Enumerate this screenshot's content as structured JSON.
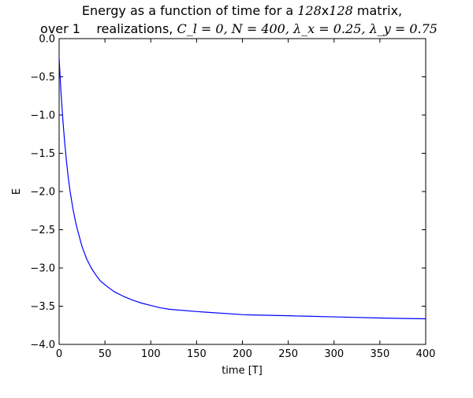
{
  "chart_data": {
    "type": "line",
    "title_line1_pre": "Energy as a function of time for a ",
    "title_line1_math1": "128",
    "title_line1_mid": "x",
    "title_line1_math2": "128",
    "title_line1_post": " matrix,",
    "title_line2_pre": "over 1    realizations, ",
    "title_line2_math": "C_l = 0, N = 400, λ_x = 0.25, λ_y = 0.75",
    "xlabel": "time [T]",
    "ylabel": "E",
    "xlim": [
      0,
      400
    ],
    "ylim": [
      -4.0,
      0.0
    ],
    "xticks": [
      0,
      50,
      100,
      150,
      200,
      250,
      300,
      350,
      400
    ],
    "yticks": [
      0.0,
      -0.5,
      -1.0,
      -1.5,
      -2.0,
      -2.5,
      -3.0,
      -3.5,
      -4.0
    ],
    "xtick_labels": [
      "0",
      "50",
      "100",
      "150",
      "200",
      "250",
      "300",
      "350",
      "400"
    ],
    "ytick_labels": [
      "0.0",
      "−0.5",
      "−1.0",
      "−1.5",
      "−2.0",
      "−2.5",
      "−3.0",
      "−3.5",
      "−4.0"
    ],
    "grid": false,
    "series": [
      {
        "color": "#0000ff",
        "x": [
          0,
          2,
          4,
          6,
          8,
          10,
          12,
          15,
          18,
          20,
          25,
          30,
          35,
          40,
          45,
          50,
          60,
          70,
          80,
          90,
          100,
          110,
          120,
          150,
          200,
          210,
          250,
          300,
          350,
          400
        ],
        "y": [
          -0.25,
          -0.7,
          -1.05,
          -1.35,
          -1.6,
          -1.82,
          -2.0,
          -2.22,
          -2.4,
          -2.5,
          -2.72,
          -2.88,
          -3.0,
          -3.09,
          -3.17,
          -3.22,
          -3.31,
          -3.37,
          -3.42,
          -3.46,
          -3.49,
          -3.52,
          -3.54,
          -3.57,
          -3.61,
          -3.615,
          -3.625,
          -3.64,
          -3.655,
          -3.665
        ]
      }
    ]
  }
}
